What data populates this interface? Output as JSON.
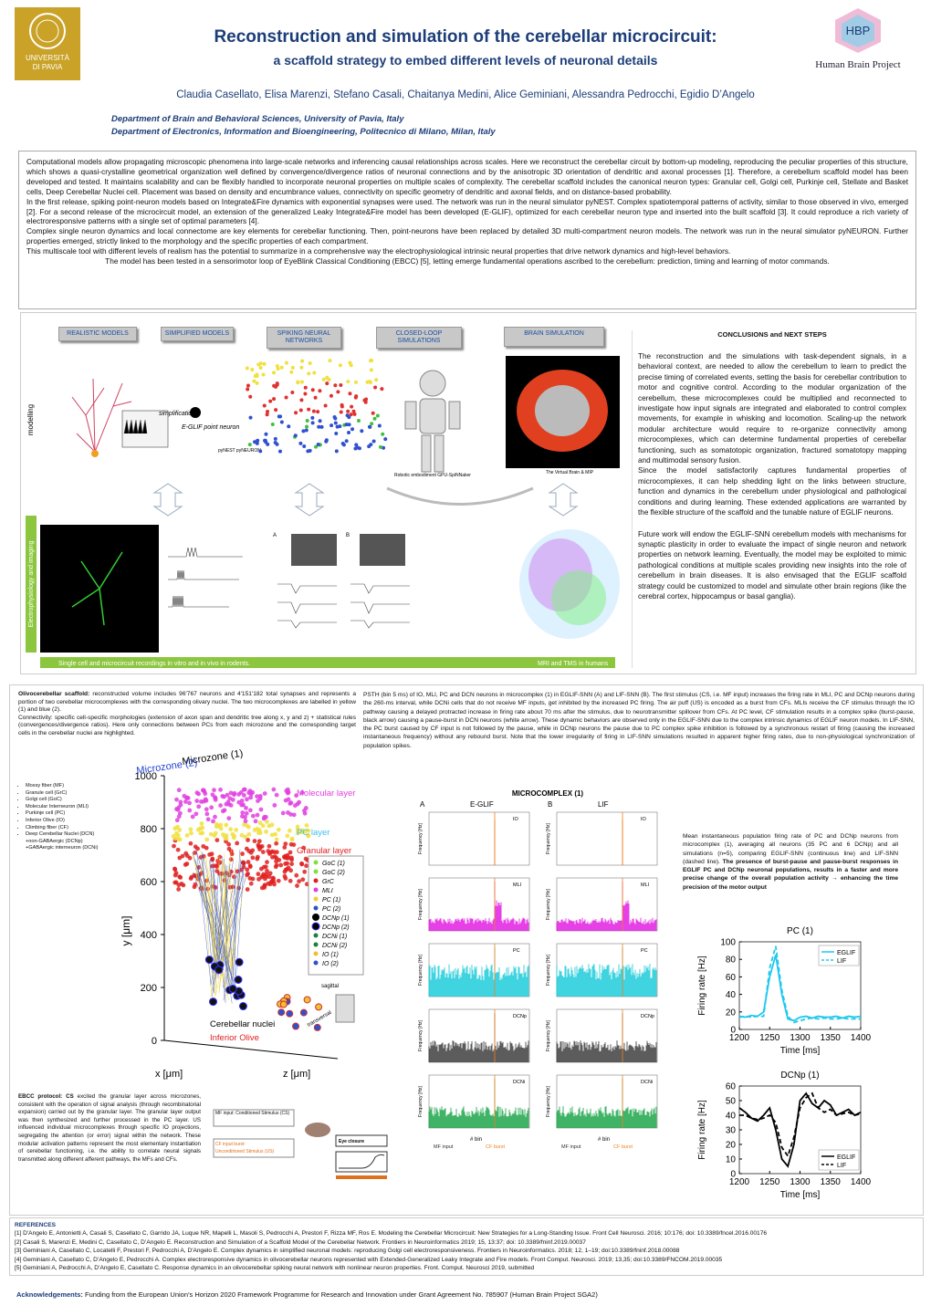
{
  "header": {
    "title": "Reconstruction and simulation of the cerebellar microcircuit:",
    "subtitle": "a scaffold strategy to embed different levels of neuronal details",
    "authors": "Claudia Casellato, Elisa Marenzi, Stefano Casali, Chaitanya Medini, Alice Geminiani, Alessandra Pedrocchi, Egidio D’Angelo",
    "affiliations": [
      "Department of Brain and Behavioral Sciences, University of Pavia, Italy",
      "Department of Electronics, Information and Bioengineering, Politecnico di Milano, Milan, Italy"
    ],
    "logo_left": [
      "UNIVERSITÀ",
      "DI PAVIA"
    ],
    "logo_right": "Human Brain Project",
    "logo_right_mark": "HBP"
  },
  "abstract": {
    "paragraphs": [
      "Computational models allow propagating microscopic phenomena into large-scale networks and inferencing causal relationships across scales. Here we reconstruct the cerebellar circuit by bottom-up modeling, reproducing the peculiar properties of this structure, which shows a quasi-crystalline geometrical organization well defined by convergence/divergence ratios of neuronal connections and by the anisotropic 3D orientation of dendritic and axonal processes [1]. Therefore, a cerebellum scaffold model has been developed and tested. It maintains scalability and can be flexibly handled to incorporate neuronal properties on multiple scales of complexity. The cerebellar scaffold includes the canonical neuron types: Granular cell, Golgi cell, Purkinje cell, Stellate and Basket cells, Deep Cerebellar Nuclei cell. Placement was based on density and encumbrance values, connectivity on specific geometry of dendritic and axonal fields, and on distance-based probability.",
      "In the first release, spiking point-neuron models based on Integrate&Fire dynamics with exponential synapses were used. The network was run in the neural simulator pyNEST. Complex spatiotemporal patterns of activity, similar to those observed in vivo, emerged [2]. For a second release of the microcircuit model, an extension of the generalized Leaky Integrate&Fire model has been developed (E-GLIF), optimized for each cerebellar neuron type and inserted into the built scaffold [3]. It could reproduce a rich variety of electroresponsive patterns with a single set of optimal parameters [4].",
      "Complex single neuron dynamics and local connectome are key elements for cerebellar functioning.  Then, point-neurons have been replaced by detailed 3D multi-compartment neuron models. The network was run in the neural simulator pyNEURON. Further properties emerged, strictly linked to the morphology and the specific properties of each compartment.",
      "This multiscale tool with different levels of realism has the potential to summarize in a comprehensive way the electrophysiological intrinsic neural properties that drive network dynamics and high-level behaviors.",
      "The model has been tested in a sensorimotor loop of EyeBlink Classical Conditioning (EBCC) [5], letting emerge fundamental operations ascribed to the cerebellum: prediction, timing and learning of motor commands."
    ]
  },
  "workflow": {
    "boxes": [
      "REALISTIC MODELS",
      "SIMPLIFIED MODELS",
      "SPIKING NEURAL NETWORKS",
      "CLOSED-LOOP SIMULATIONS",
      "BRAIN SIMULATION"
    ],
    "side_labels": [
      "modelling",
      "Electrophysiology and imaging"
    ],
    "captions": [
      "simplification",
      "E-GLIF point neuron",
      "pyNEST pyNEURON",
      "Robotic embodiment GPU-SpiNNaker",
      "The Virtual Brain & MIP"
    ],
    "panel_labels": [
      "A",
      "B"
    ],
    "bottom_bar": [
      "Single cell and microcircuit recordings in vitro and in vivo in rodents.",
      "MRI and TMS  in humans"
    ]
  },
  "conclusions": {
    "title": "CONCLUSIONS and NEXT STEPS",
    "paragraphs": [
      "The reconstruction and the simulations with task-dependent signals, in a behavioral context, are needed to allow the cerebellum to learn to predict the precise timing of correlated events, setting the basis for cerebellar contribution to motor and cognitive control. According to the modular organization of the cerebellum, these microcomplexes could be multiplied and reconnected to investigate how input signals are integrated and elaborated to control complex movements, for example in whisking and locomotion. Scaling-up the network modular architecture would require to re-organize connectivity among microcomplexes, which can determine fundamental properties of cerebellar functioning, such as somatotopic organization, fractured somatotopy mapping and multimodal sensory fusion.",
      "Since the model satisfactorily captures fundamental properties of microcomplexes, it can help shedding light on the links between structure, function and dynamics in the cerebellum under physiological and pathological conditions and during learning. These extended applications are warranted by the flexible structure of the scaffold and the tunable nature of EGLIF neurons.",
      "Future work will endow the EGLIF-SNN cerebellum models with mechanisms for synaptic plasticity in order to evaluate the impact of single neuron and network properties on network learning. Eventually, the model may be exploited to mimic pathological conditions at multiple scales providing new insights into the role of cerebellum in brain diseases. It is also envisaged that the EGLIF scaffold strategy could be customized to model and simulate other brain regions (like the cerebral cortex, hippocampus or basal ganglia)."
    ]
  },
  "scaffold": {
    "label": "Olivocerebellar scaffold:",
    "text": " reconstructed volume includes 96'767 neurons and 4'151'182 total synapses and represents a portion of two cerebellar microcomplexes with the corresponding olivary nuclei. The two microcomplexes are labelled in yellow (1) and blue (2).",
    "connectivity": "Connectivity: specific cell-specific morphologies (extension of axon span and dendritic tree along x, y and z) + statistical rules (convergences/divergence ratios). Here only connections between PCs from each microzone and the corresponding target cells in the cerebellar nuclei are highlighted.",
    "cell_list": [
      "Mossy fiber (MF)",
      "Granule cell (GrC)",
      "Golgi cell (GoC)",
      "Molecular Interneuron (MLI)",
      "Purkinje cell (PC)",
      "Inferior Olive (IO)",
      "Climbing fiber (CF)",
      "Deep Cerebellar Nuclei  (DCN)",
      "+non-GABAergic (DCNp)",
      "+GABAergic interneuron (DCNi)"
    ],
    "plot": {
      "microzones": [
        "Microzone (1)",
        "Microzone (2)"
      ],
      "layers": [
        "Molecular layer",
        "PC layer",
        "Granular layer",
        "Cerebellar nuclei",
        "Inferior Olive"
      ],
      "planes": [
        "sagittal",
        "transversal"
      ],
      "legend": [
        "GoC (1)",
        "GoC (2)",
        "GrC",
        "MLI",
        "PC (1)",
        "PC (2)",
        "DCNp (1)",
        "DCNp (2)",
        "DCNi (1)",
        "DCNi (2)",
        "IO (1)",
        "IO (2)"
      ],
      "ylabel": "y [μm]",
      "xlabel": "x [μm]",
      "zlabel": "z [μm]",
      "ylim": [
        0,
        1000
      ],
      "yticks": [
        0,
        200,
        400,
        600,
        800,
        1000
      ]
    }
  },
  "psth": {
    "text": "PSTH (bin 5 ms) of IO, MLI, PC and DCN neurons in microcomplex (1) in EGLIF-SNN (A) and LIF-SNN (B). The first stimulus (CS, i.e. MF input) increases the firing rate in MLI, PC and DCNp neurons during the 260-ms interval, while DCNi cells that do not receive MF inputs, get inhibited by the increased PC firing. The air puff (US) is encoded as a burst from CFs. MLIs receive the CF stimulus through the IO pathway causing a delayed protracted increase in firing rate about 70 ms after the stimulus, due to neurotransmitter spillover from CFs. At PC level, CF stimulation results in a complex spike (burst-pause, black arrow) causing a pause-burst in DCN neurons (white arrow). These dynamic behaviors are observed only in the EGLIF-SNN due to the complex intrinsic dynamics of EGLIF neuron models. In LIF-SNN, the PC burst caused by CF input is not followed by the pause, while in DCNp neurons the pause due to PC complex spike inhibition is followed by a synchronous restart of firing (causing the increased instantaneous frequency) without any rebound burst. Note that the lower irregularity of firing in LIF-SNN simulations resulted in apparent higher firing rates, due to non-physiological synchronization of population spikes.",
    "figure_title": "MICROCOMPLEX (1)",
    "columns": [
      {
        "letter": "A",
        "name": "E-GLIF"
      },
      {
        "letter": "B",
        "name": "LIF"
      }
    ],
    "panels": [
      "IO",
      "MLI",
      "PC",
      "DCNp",
      "DCNi"
    ],
    "ylabel": "Frequency [Hz]",
    "xlabel": "# bin",
    "markers": [
      "MF input",
      "CF burst"
    ]
  },
  "mean_rate": {
    "text": "Mean instantaneous population firing rate of PC and DCNp neurons from microcomplex (1), averaging all neurons (35 PC and 6 DCNp) and all simulations (n=5), comparing EGLIF-SNN (continuous line) and LIF-SNN (dashed line). ",
    "bold": "The presence of burst-pause and pause-burst responses in EGLIF PC and DCNp neuronal populations, results in a faster and more precise change of the overall population activity → enhancing the time precision of the motor output"
  },
  "chart_data": [
    {
      "type": "line",
      "title": "PC (1)",
      "xlabel": "Time [ms]",
      "ylabel": "Firing rate [Hz]",
      "x": [
        1200,
        1210,
        1220,
        1230,
        1240,
        1250,
        1260,
        1270,
        1280,
        1290,
        1300,
        1310,
        1320,
        1330,
        1340,
        1350,
        1360,
        1370,
        1380,
        1390,
        1400
      ],
      "xlim": [
        1200,
        1400
      ],
      "xticks": [
        1200,
        1250,
        1300,
        1350,
        1400
      ],
      "ylim": [
        0,
        100
      ],
      "yticks": [
        0,
        20,
        40,
        60,
        80,
        100
      ],
      "legend": "upper right",
      "series": [
        {
          "name": "EGLIF",
          "color": "#1ec8ee",
          "dash": false,
          "values": [
            15,
            14,
            16,
            15,
            20,
            60,
            85,
            40,
            12,
            10,
            14,
            15,
            13,
            15,
            14,
            14,
            15,
            13,
            15,
            14,
            15
          ]
        },
        {
          "name": "LIF",
          "color": "#1ec8ee",
          "dash": true,
          "values": [
            14,
            15,
            14,
            15,
            15,
            70,
            95,
            45,
            15,
            8,
            10,
            12,
            13,
            12,
            13,
            12,
            12,
            13,
            12,
            12,
            12
          ]
        }
      ]
    },
    {
      "type": "line",
      "title": "DCNp (1)",
      "xlabel": "Time [ms]",
      "ylabel": "Firing rate [Hz]",
      "x": [
        1200,
        1210,
        1220,
        1230,
        1240,
        1250,
        1260,
        1270,
        1280,
        1290,
        1300,
        1310,
        1320,
        1330,
        1340,
        1350,
        1360,
        1370,
        1380,
        1390,
        1400
      ],
      "xlim": [
        1200,
        1400
      ],
      "xticks": [
        1200,
        1250,
        1300,
        1350,
        1400
      ],
      "ylim": [
        0,
        60
      ],
      "yticks": [
        0,
        10,
        20,
        30,
        40,
        50,
        60
      ],
      "legend": "lower right",
      "series": [
        {
          "name": "EGLIF",
          "color": "#000000",
          "dash": false,
          "values": [
            45,
            42,
            38,
            36,
            40,
            45,
            30,
            10,
            5,
            20,
            50,
            55,
            48,
            45,
            50,
            47,
            40,
            42,
            44,
            40,
            42
          ]
        },
        {
          "name": "LIF",
          "color": "#000000",
          "dash": true,
          "values": [
            40,
            40,
            38,
            37,
            38,
            40,
            35,
            18,
            12,
            25,
            45,
            52,
            55,
            45,
            42,
            44,
            40,
            41,
            42,
            40,
            41
          ]
        }
      ]
    }
  ],
  "ebcc": {
    "label": "EBCC protocol: CS",
    "text": " excited the granular layer across microzones, consistent with the operation of signal analysis (through recombinatorial expansion) carried out by the granular layer. The granular layer output was then synthesized and further processed in the PC layer. US influenced individual microcomplexes through specific IO projections, segregating the attention (or error) signal within the network. These modular activation patterns represent the most elementary instantiation of cerebellar functioning, i.e. the ability to correlate neural signals transmitted along different afferent pathways, the MFs and CFs.",
    "cs_box": "MF input: Conditioned Stimulus (CS)",
    "us_box": [
      "CF input burst:",
      "Unconditioned Stimulus (US)"
    ],
    "eye": "Eye closure"
  },
  "references": {
    "title": "REFERENCES",
    "items": [
      "[1] D'Angelo E, Antonietti A, Casali S, Casellato C, Garrido JA, Luque NR, Mapelli L, Masoli S, Pedrocchi A, Prestori F, Rizza MF, Ros E. Modeling the Cerebellar Microcircuit: New Strategies for a Long-Standing Issue. Front Cell Neurosci. 2016; 10:176; doi: 10.3389/fncel.2016.00176",
      "[2] Casali S, Marenzi E, Medini C, Casellato C, D’Angelo E. Reconstruction and Simulation of a Scaffold Model of the Cerebellar Network. Frontiers in Neuroinformatics 2019; 15, 13:37; doi: 10.3389/fninf.2019.00037",
      "[3] Geminiani A, Casellato C, Locatelli F, Prestori F, Pedrocchi A, D'Angelo E. Complex dynamics in simplified neuronal models: reproducing Golgi cell electroresponsiveness. Frontiers in Neuroinformatics. 2018; 12, 1–19; doi:10.3389/fninf.2018.00088",
      "[4] Geminiani A, Casellato C, D’Angelo E, Pedrocchi A. Complex electroresponsive dynamics in olivocerebellar neurons represented with Extended-Generalized Leaky Integrate and Fire models. Front Comput. Neurosci. 2019; 13,35; doi:10.3389/FNCOM.2019.00035",
      "[5] Geminiani A, Pedrocchi A, D’Angelo E, Casellato C. Response dynamics in an olivocerebellar spiking neural network with nonlinear neuron properties. Front. Comput. Neurosci 2019, submitted"
    ]
  },
  "acknowledgements": {
    "label": "Acknowledgements:",
    "text": " Funding from the European Union’s Horizon 2020 Framework Programme for Research and Innovation under Grant Agreement No. 785907 (Human Brain Project SGA2)"
  }
}
